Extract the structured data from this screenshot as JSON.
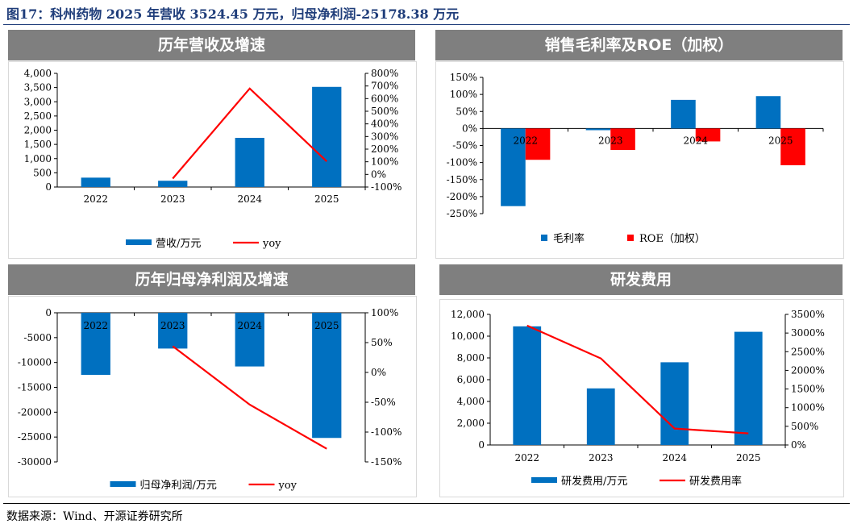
{
  "figure_title": "图17：科州药物 2025 年营收 3524.45 万元，归母净利润-25178.38 万元",
  "source": "数据来源：Wind、开源证券研究所",
  "colors": {
    "bar": "#0070c0",
    "line": "#ff0000",
    "bar_alt": "#ff0000",
    "header": "#7f7f7f",
    "title": "#1f3d7a"
  },
  "chart_data": [
    {
      "id": "revenue",
      "type": "bar",
      "title": "历年营收及增速",
      "categories": [
        "2022",
        "2023",
        "2024",
        "2025"
      ],
      "series": [
        {
          "name": "营收/万元",
          "kind": "bar",
          "axis": "left",
          "values": [
            330,
            220,
            1730,
            3524
          ]
        },
        {
          "name": "yoy",
          "kind": "line",
          "axis": "right",
          "values": [
            null,
            -33,
            680,
            103
          ]
        }
      ],
      "yleft": {
        "min": 0,
        "max": 4000,
        "ticks": [
          "0",
          "500",
          "1,000",
          "1,500",
          "2,000",
          "2,500",
          "3,000",
          "3,500",
          "4,000"
        ]
      },
      "yright": {
        "min": -100,
        "max": 800,
        "ticks": [
          "-100%",
          "0%",
          "100%",
          "200%",
          "300%",
          "400%",
          "500%",
          "600%",
          "700%",
          "800%"
        ]
      },
      "legend": "bottom"
    },
    {
      "id": "margin",
      "type": "bar",
      "title": "销售毛利率及ROE（加权）",
      "categories": [
        "2022",
        "2023",
        "2024",
        "2025"
      ],
      "series": [
        {
          "name": "毛利率",
          "kind": "bar",
          "values": [
            -228,
            -5,
            84,
            95
          ]
        },
        {
          "name": "ROE（加权）",
          "kind": "bar",
          "values": [
            -92,
            -63,
            -38,
            -108
          ]
        }
      ],
      "y": {
        "min": -250,
        "max": 150,
        "ticks": [
          "-250%",
          "-200%",
          "-150%",
          "-100%",
          "-50%",
          "0%",
          "50%",
          "100%",
          "150%"
        ]
      },
      "legend": "bottom"
    },
    {
      "id": "netprofit",
      "type": "bar",
      "title": "历年归母净利润及增速",
      "categories": [
        "2022",
        "2023",
        "2024",
        "2025"
      ],
      "series": [
        {
          "name": "归母净利润/万元",
          "kind": "bar",
          "axis": "left",
          "values": [
            -12500,
            -7200,
            -10800,
            -25178
          ]
        },
        {
          "name": "yoy",
          "kind": "line",
          "axis": "right",
          "values": [
            null,
            44,
            -54,
            -128
          ]
        }
      ],
      "yleft": {
        "min": -30000,
        "max": 0,
        "ticks": [
          "-30000",
          "-25000",
          "-20000",
          "-15000",
          "-10000",
          "-5000",
          "0"
        ]
      },
      "yright": {
        "min": -150,
        "max": 100,
        "ticks": [
          "-150%",
          "-100%",
          "-50%",
          "0%",
          "50%",
          "100%"
        ]
      },
      "legend": "bottom"
    },
    {
      "id": "rd",
      "type": "bar",
      "title": "研发费用",
      "categories": [
        "2022",
        "2023",
        "2024",
        "2025"
      ],
      "series": [
        {
          "name": "研发费用/万元",
          "kind": "bar",
          "axis": "left",
          "values": [
            10900,
            5200,
            7600,
            10400
          ]
        },
        {
          "name": "研发费用率",
          "kind": "line",
          "axis": "right",
          "values": [
            3200,
            2320,
            440,
            310
          ]
        }
      ],
      "yleft": {
        "min": 0,
        "max": 12000,
        "ticks": [
          "0",
          "2,000",
          "4,000",
          "6,000",
          "8,000",
          "10,000",
          "12,000"
        ]
      },
      "yright": {
        "min": 0,
        "max": 3500,
        "ticks": [
          "0%",
          "500%",
          "1000%",
          "1500%",
          "2000%",
          "2500%",
          "3000%",
          "3500%"
        ]
      },
      "legend": "bottom"
    }
  ]
}
